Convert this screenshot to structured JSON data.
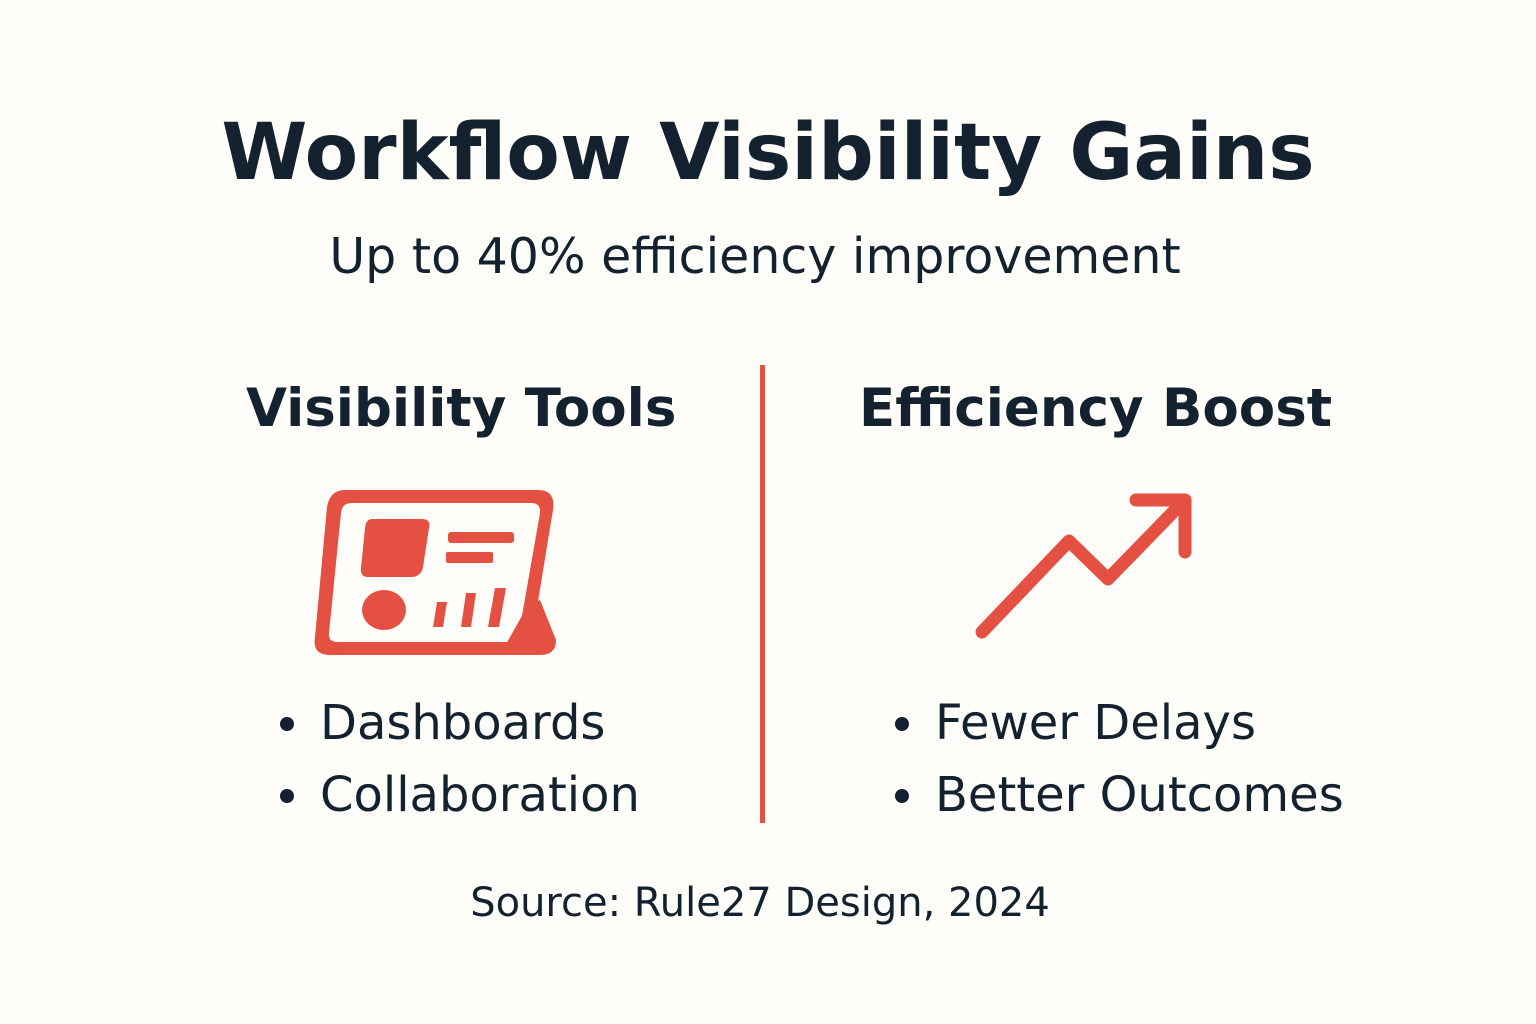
{
  "title": "Workflow Visibility Gains",
  "subtitle": "Up to 40% efficiency improvement",
  "left": {
    "heading": "Visibility Tools",
    "icon": "dashboard-tablet-icon",
    "items": [
      "Dashboards",
      "Collaboration"
    ]
  },
  "right": {
    "heading": "Efficiency Boost",
    "icon": "trending-up-arrow-icon",
    "items": [
      "Fewer Delays",
      "Better Outcomes"
    ]
  },
  "source": "Source: Rule27 Design, 2024",
  "colors": {
    "accent": "#e45142",
    "text": "#13222e",
    "background": "#fefdf9"
  }
}
